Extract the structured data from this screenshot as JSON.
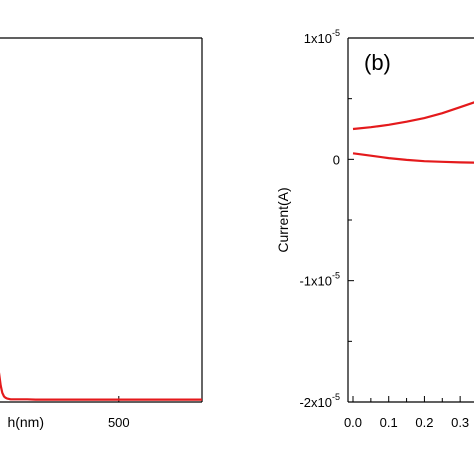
{
  "chart_data": [
    {
      "type": "line",
      "xlabel": "h(nm)",
      "x_ticks": [
        {
          "value": 500,
          "label": "500"
        }
      ],
      "xlim": [
        350,
        600
      ],
      "ylim": [
        0,
        1
      ],
      "series": [
        {
          "color": "#e41a1c",
          "x": [
            350,
            352,
            354,
            356,
            358,
            360,
            362,
            364,
            366,
            368,
            370,
            375,
            380,
            390,
            400,
            450,
            500,
            550,
            600
          ],
          "y": [
            0.05,
            0.07,
            0.09,
            0.075,
            0.04,
            0.02,
            0.01,
            0.006,
            0.004,
            0.003,
            0.002,
            0.002,
            0.002,
            0.002,
            0.001,
            0.001,
            0.001,
            0.001,
            0.001
          ]
        }
      ]
    },
    {
      "type": "line",
      "panel_label": "(b)",
      "xlabel": "",
      "ylabel": "Current(A)",
      "xlim": [
        0,
        0.35
      ],
      "ylim": [
        -2e-05,
        1e-05
      ],
      "x_ticks": [
        {
          "value": 0.0,
          "label": "0.0"
        },
        {
          "value": 0.1,
          "label": "0.1"
        },
        {
          "value": 0.2,
          "label": "0.2"
        },
        {
          "value": 0.3,
          "label": "0.3"
        }
      ],
      "y_ticks": [
        {
          "value": 1e-05,
          "base": "1x10",
          "exp": "-5"
        },
        {
          "value": 0,
          "base": "0",
          "exp": ""
        },
        {
          "value": -1e-05,
          "base": "-1x10",
          "exp": "-5"
        },
        {
          "value": -2e-05,
          "base": "-2x10",
          "exp": "-5"
        }
      ],
      "series": [
        {
          "color": "#e41a1c",
          "x": [
            0.0,
            0.05,
            0.1,
            0.15,
            0.2,
            0.25,
            0.3,
            0.35
          ],
          "y": [
            2.5e-06,
            2.65e-06,
            2.85e-06,
            3.1e-06,
            3.4e-06,
            3.8e-06,
            4.3e-06,
            4.8e-06
          ]
        },
        {
          "color": "#e41a1c",
          "x": [
            0.0,
            0.05,
            0.1,
            0.15,
            0.2,
            0.25,
            0.3,
            0.35
          ],
          "y": [
            5e-07,
            3e-07,
            1e-07,
            -5e-08,
            -1.5e-07,
            -2e-07,
            -2.5e-07,
            -2.8e-07
          ]
        }
      ]
    }
  ]
}
